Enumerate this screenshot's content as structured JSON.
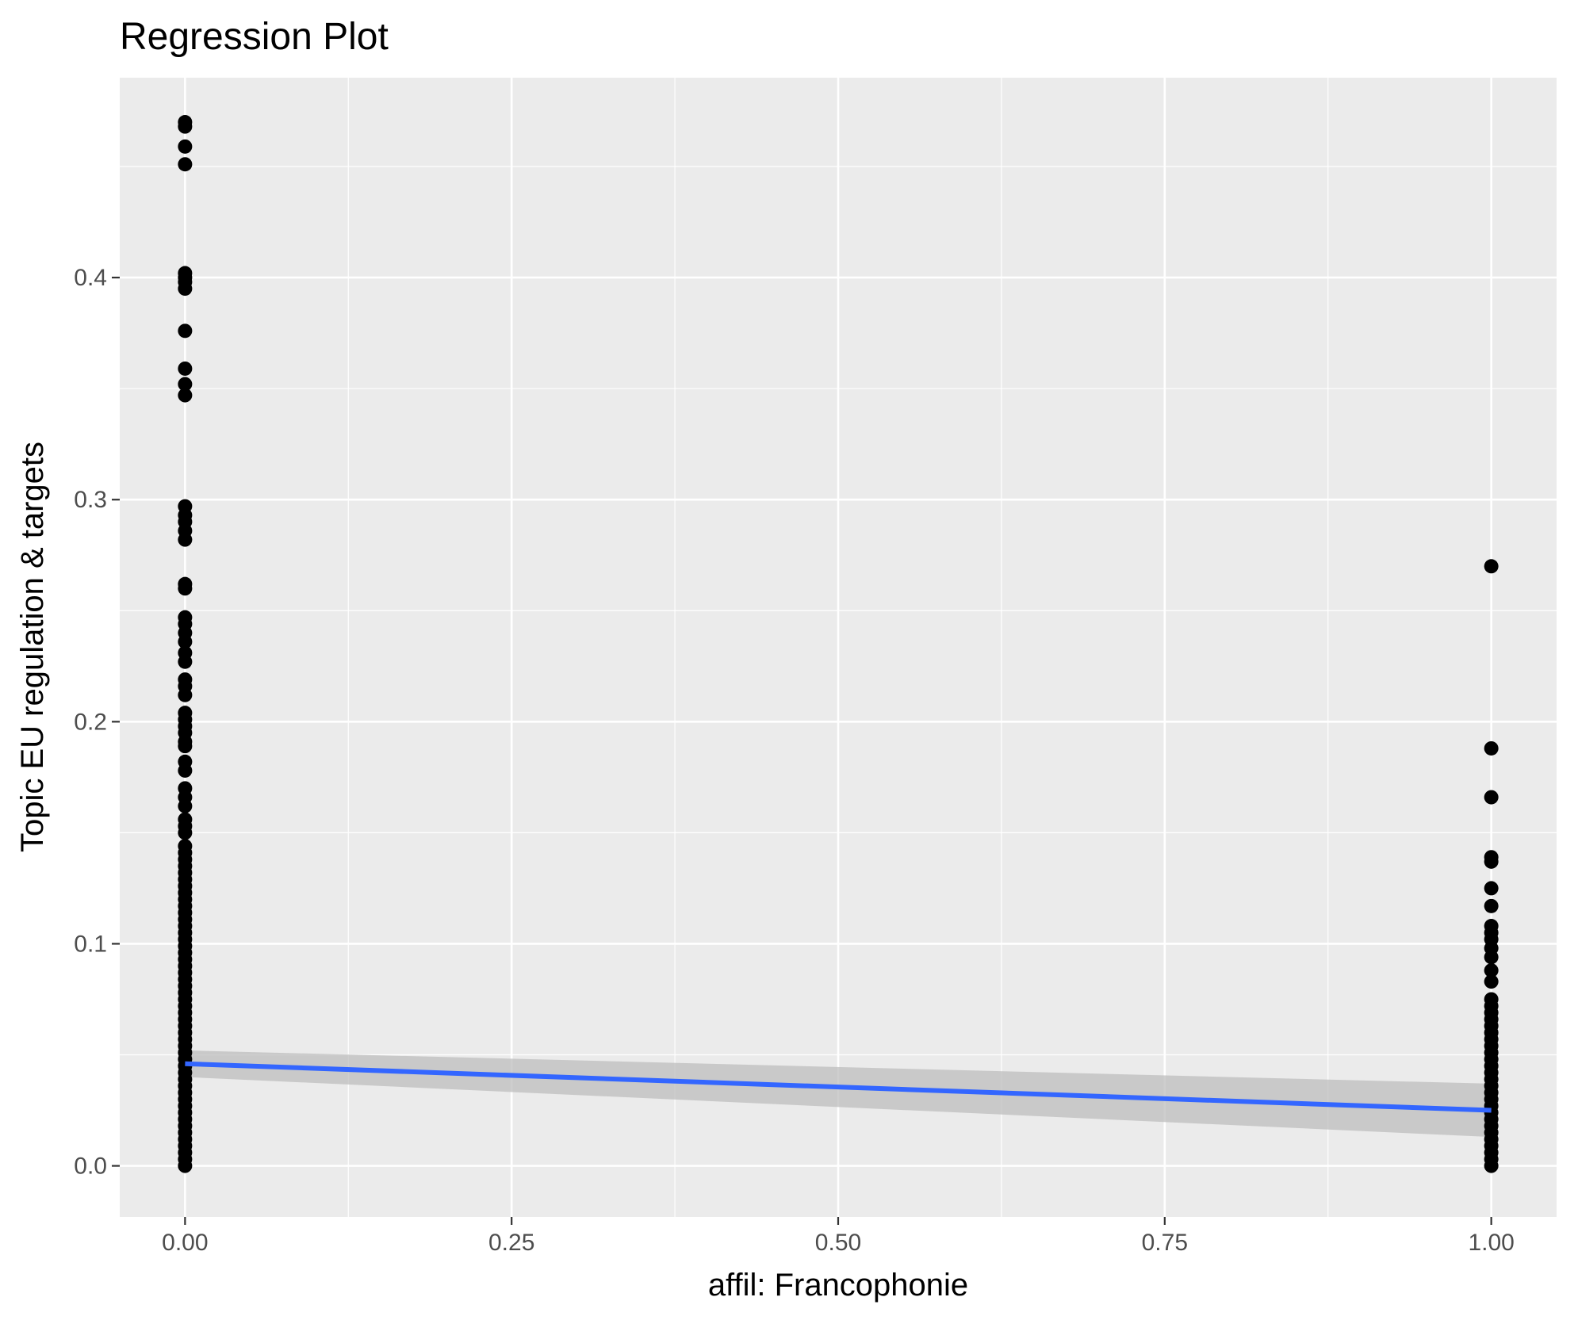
{
  "chart_data": {
    "type": "scatter",
    "title": "Regression Plot",
    "xlabel": "affil: Francophonie",
    "ylabel": "Topic EU regulation & targets",
    "xlim": [
      -0.05,
      1.05
    ],
    "ylim": [
      -0.023,
      0.49
    ],
    "x_ticks": [
      0.0,
      0.25,
      0.5,
      0.75,
      1.0
    ],
    "x_tick_labels": [
      "0.00",
      "0.25",
      "0.50",
      "0.75",
      "1.00"
    ],
    "y_ticks": [
      0.0,
      0.1,
      0.2,
      0.3,
      0.4
    ],
    "y_tick_labels": [
      "0.0",
      "0.1",
      "0.2",
      "0.3",
      "0.4"
    ],
    "grid": true,
    "legend": "none",
    "colors": {
      "panel": "#ebebeb",
      "grid": "#ffffff",
      "points": "#000000",
      "line": "#3366ff",
      "band": "#bdbdbd"
    },
    "series": [
      {
        "x": 0,
        "y": [
          0.47,
          0.468,
          0.459,
          0.451,
          0.402,
          0.4,
          0.398,
          0.395,
          0.376,
          0.359,
          0.352,
          0.347,
          0.297,
          0.293,
          0.29,
          0.286,
          0.282,
          0.262,
          0.26,
          0.247,
          0.244,
          0.24,
          0.236,
          0.231,
          0.227,
          0.219,
          0.216,
          0.212,
          0.204,
          0.201,
          0.198,
          0.195,
          0.191,
          0.189,
          0.182,
          0.178,
          0.17,
          0.166,
          0.162,
          0.156,
          0.153,
          0.15,
          0.144,
          0.141,
          0.138,
          0.135,
          0.132,
          0.129,
          0.126,
          0.123,
          0.12,
          0.117,
          0.114,
          0.111,
          0.108,
          0.105,
          0.102,
          0.099,
          0.096,
          0.093,
          0.09,
          0.087,
          0.084,
          0.081,
          0.078,
          0.075,
          0.072,
          0.069,
          0.066,
          0.063,
          0.06,
          0.057,
          0.054,
          0.051,
          0.048,
          0.045,
          0.042,
          0.039,
          0.036,
          0.033,
          0.03,
          0.027,
          0.024,
          0.021,
          0.018,
          0.015,
          0.012,
          0.009,
          0.006,
          0.003,
          0.0
        ]
      },
      {
        "x": 1,
        "y": [
          0.27,
          0.188,
          0.166,
          0.139,
          0.137,
          0.125,
          0.117,
          0.108,
          0.105,
          0.102,
          0.098,
          0.094,
          0.088,
          0.083,
          0.075,
          0.072,
          0.069,
          0.066,
          0.063,
          0.06,
          0.057,
          0.054,
          0.051,
          0.048,
          0.045,
          0.042,
          0.039,
          0.036,
          0.033,
          0.03,
          0.027,
          0.024,
          0.021,
          0.018,
          0.015,
          0.012,
          0.009,
          0.006,
          0.003,
          0.0
        ]
      }
    ],
    "regression": {
      "x": [
        0,
        1
      ],
      "y": [
        0.046,
        0.025
      ],
      "ci_lower": [
        0.04,
        0.013
      ],
      "ci_upper": [
        0.052,
        0.037
      ]
    }
  }
}
